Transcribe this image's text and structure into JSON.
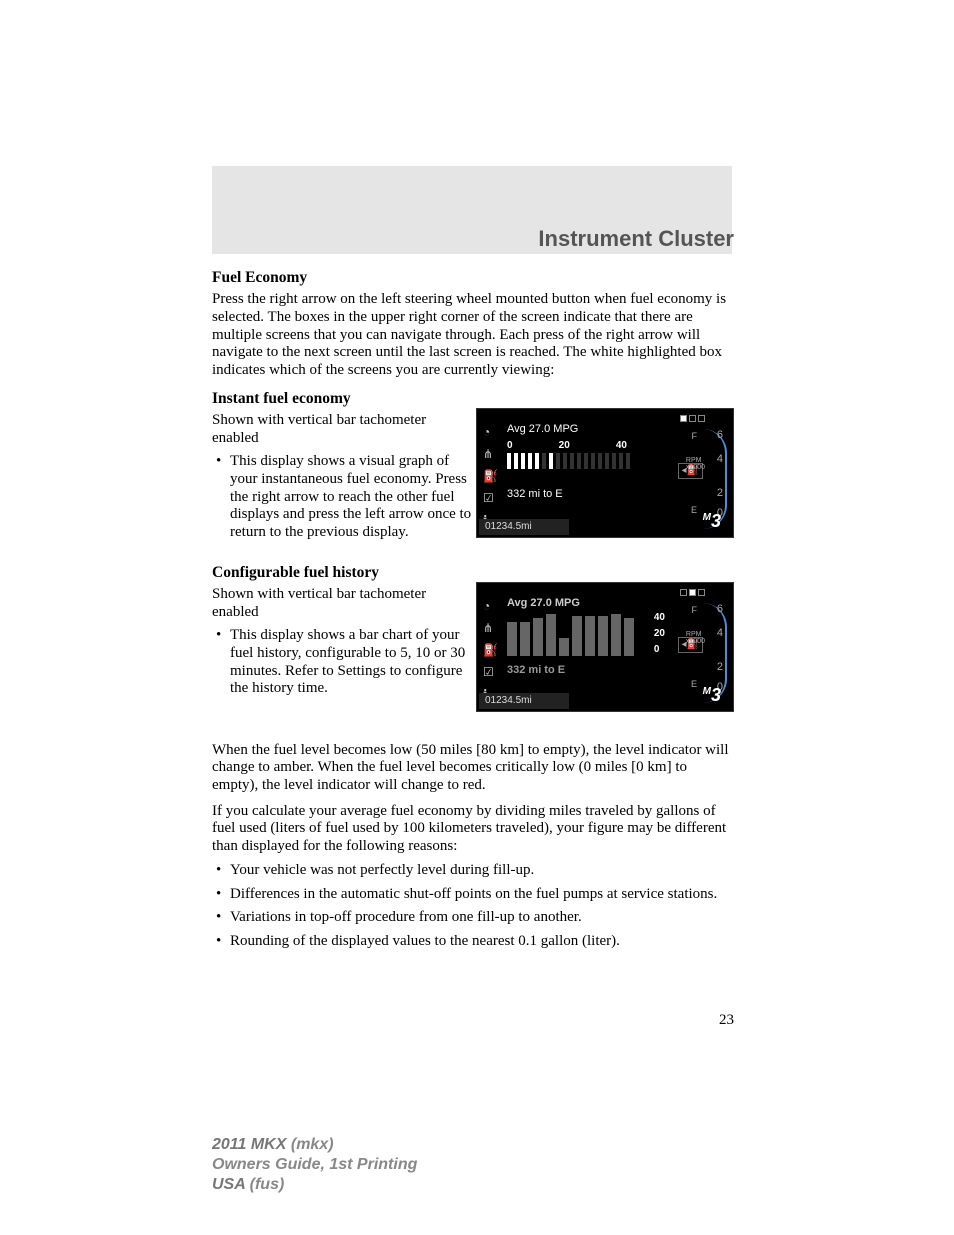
{
  "title": "Instrument Cluster",
  "sec1": {
    "head": "Fuel Economy",
    "para": "Press the right arrow on the left steering wheel mounted button when fuel economy is selected. The boxes in the upper right corner of the screen indicate that there are multiple screens that you can navigate through. Each press of the right arrow will navigate to the next screen until the last screen is reached. The white highlighted box indicates which of the screens you are currently viewing:"
  },
  "sec2": {
    "head": "Instant fuel economy",
    "intro": "Shown with vertical bar tachometer enabled",
    "bullet": "This display shows a visual graph of your instantaneous fuel economy. Press the right arrow to reach the other fuel displays and press the left arrow once to return to the previous display."
  },
  "sec3": {
    "head": "Configurable fuel history",
    "intro": "Shown with vertical bar tachometer enabled",
    "bullet": "This display shows a bar chart of your fuel history, configurable to 5, 10 or 30 minutes. Refer to Settings to configure the history time."
  },
  "display1": {
    "avg": "Avg 27.0 MPG",
    "scale": {
      "labels": [
        "0",
        "20",
        "40"
      ],
      "active": [
        1,
        1,
        1,
        1,
        1,
        0,
        1,
        0,
        0,
        0,
        0,
        0,
        0,
        0,
        0,
        0,
        0,
        0
      ]
    },
    "miToE": "332 mi to E",
    "odo": "01234.5mi",
    "gauge": {
      "top": "F",
      "bot": "E",
      "nums": [
        "6",
        "4",
        "2",
        "0"
      ],
      "rpm1": "RPM",
      "rpm2": "x1000",
      "gear": "3"
    }
  },
  "display2": {
    "avg": "Avg 27.0 MPG",
    "histHeights": [
      34,
      34,
      38,
      42,
      18,
      40,
      40,
      40,
      42,
      38
    ],
    "histScale": [
      "40",
      "20",
      "0"
    ],
    "miToE": "332 mi to E",
    "odo": "01234.5mi",
    "gauge": {
      "top": "F",
      "bot": "E",
      "nums": [
        "6",
        "4",
        "2",
        "0"
      ],
      "rpm1": "RPM",
      "rpm2": "x1000",
      "gear": "3"
    }
  },
  "body2": {
    "p1": "When the fuel level becomes low (50 miles [80 km] to empty), the level indicator will change to amber. When the fuel level becomes critically low (0 miles [0 km] to empty), the level indicator will change to red.",
    "p2": "If you calculate your average fuel economy by dividing miles traveled by gallons of fuel used (liters of fuel used by 100 kilometers traveled), your figure may be different than displayed for the following reasons:",
    "b1": "Your vehicle was not perfectly level during fill-up.",
    "b2": "Differences in the automatic shut-off points on the fuel pumps at service stations.",
    "b3": "Variations in top-off procedure from one fill-up to another.",
    "b4": "Rounding of the displayed values to the nearest 0.1 gallon (liter)."
  },
  "pageNum": "23",
  "footer": {
    "l1a": "2011 MKX ",
    "l1b": "(mkx)",
    "l2": "Owners Guide, 1st Printing",
    "l3a": "USA ",
    "l3b": "(fus)"
  }
}
